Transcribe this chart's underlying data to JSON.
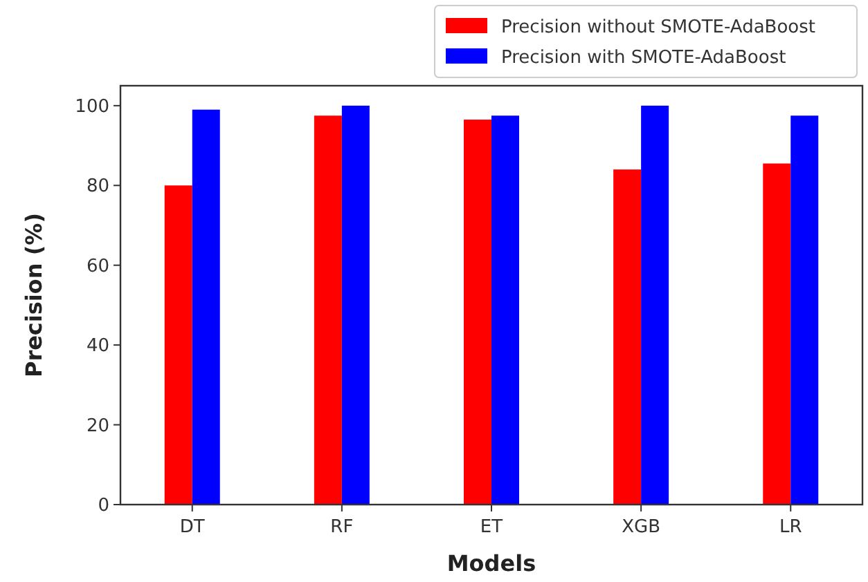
{
  "chart_data": {
    "type": "bar",
    "xlabel": "Models",
    "ylabel": "Precision (%)",
    "categories": [
      "DT",
      "RF",
      "ET",
      "XGB",
      "LR"
    ],
    "series": [
      {
        "name": "Precision without SMOTE-AdaBoost",
        "color": "#ff0000",
        "values": [
          80,
          97.5,
          96.5,
          84,
          85.5
        ]
      },
      {
        "name": "Precision with SMOTE-AdaBoost",
        "color": "#0000ff",
        "values": [
          99,
          100,
          97.5,
          100,
          97.5
        ]
      }
    ],
    "ylim": [
      0,
      105
    ],
    "yticks": [
      0,
      20,
      40,
      60,
      80,
      100
    ],
    "grid": false,
    "legend": "top right"
  }
}
